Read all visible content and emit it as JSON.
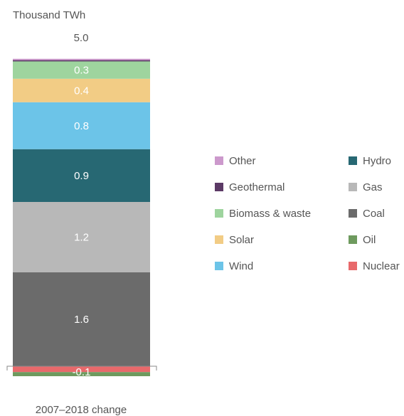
{
  "chart_data": {
    "type": "bar",
    "stacked": true,
    "title": "",
    "unit_label": "Thousand TWh",
    "total_label": "5.0",
    "xlabel": "2007–2018 change",
    "ylabel": "",
    "ylim": [
      -0.17,
      5.3
    ],
    "segments": [
      {
        "name": "Nuclear",
        "value": -0.1,
        "label": "",
        "color": "#e8696b",
        "text_color": "#ffffff"
      },
      {
        "name": "Oil",
        "value": -0.07,
        "label": "-0.1",
        "color": "#6e9a5e",
        "text_color": "#ffffff"
      },
      {
        "name": "Coal",
        "value": 1.6,
        "label": "1.6",
        "color": "#6b6b6b",
        "text_color": "#ffffff"
      },
      {
        "name": "Gas",
        "value": 1.2,
        "label": "1.2",
        "color": "#b8b8b8",
        "text_color": "#ffffff"
      },
      {
        "name": "Hydro",
        "value": 0.9,
        "label": "0.9",
        "color": "#276873",
        "text_color": "#ffffff"
      },
      {
        "name": "Wind",
        "value": 0.8,
        "label": "0.8",
        "color": "#6cc4e8",
        "text_color": "#ffffff"
      },
      {
        "name": "Solar",
        "value": 0.4,
        "label": "0.4",
        "color": "#f2cc85",
        "text_color": "#ffffff"
      },
      {
        "name": "Biomass & waste",
        "value": 0.3,
        "label": "0.3",
        "color": "#9ed49e",
        "text_color": "#ffffff"
      },
      {
        "name": "Geothermal",
        "value": 0.02,
        "label": "",
        "color": "#5c3a66",
        "text_color": "#ffffff"
      },
      {
        "name": "Other",
        "value": 0.02,
        "label": "",
        "color": "#cc99cc",
        "text_color": "#ffffff"
      }
    ],
    "legend_position": "right",
    "legend": [
      {
        "name": "Other",
        "color": "#cc99cc"
      },
      {
        "name": "Hydro",
        "color": "#276873"
      },
      {
        "name": "Geothermal",
        "color": "#5c3a66"
      },
      {
        "name": "Gas",
        "color": "#b8b8b8"
      },
      {
        "name": "Biomass & waste",
        "color": "#9ed49e"
      },
      {
        "name": "Coal",
        "color": "#6b6b6b"
      },
      {
        "name": "Solar",
        "color": "#f2cc85"
      },
      {
        "name": "Oil",
        "color": "#6e9a5e"
      },
      {
        "name": "Wind",
        "color": "#6cc4e8"
      },
      {
        "name": "Nuclear",
        "color": "#e8696b"
      }
    ]
  }
}
